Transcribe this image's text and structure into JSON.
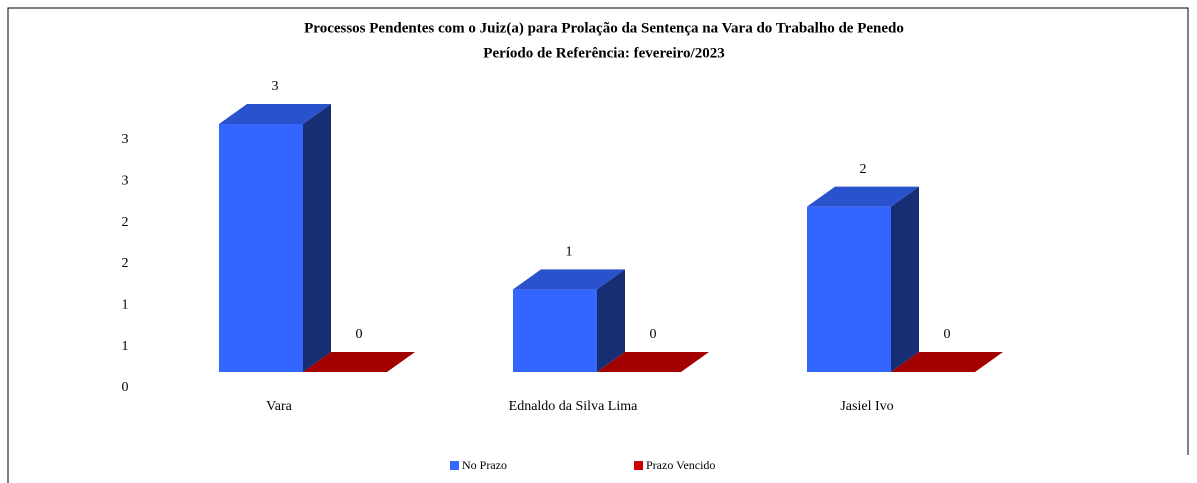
{
  "chart_data": {
    "type": "bar3d",
    "title": "Processos Pendentes com o Juiz(a) para Prolação da Sentença na Vara do Trabalho de Penedo",
    "subtitle": "Período de Referência: fevereiro/2023",
    "categories": [
      "Vara",
      "Ednaldo da Silva Lima",
      "Jasiel Ivo"
    ],
    "series": [
      {
        "name": "No Prazo",
        "color": "#3366ff",
        "values": [
          3,
          1,
          2
        ]
      },
      {
        "name": "Prazo Vencido",
        "color": "#cc0000",
        "values": [
          0,
          0,
          0
        ]
      }
    ],
    "ylim": [
      0,
      3
    ],
    "yticks": [
      0,
      {
        "value": 0.5,
        "label": "1"
      },
      1,
      {
        "value": 1.5,
        "label": "2"
      },
      2,
      {
        "value": 2.5,
        "label": "3"
      },
      3
    ],
    "grid": false,
    "legend": "bottom"
  }
}
